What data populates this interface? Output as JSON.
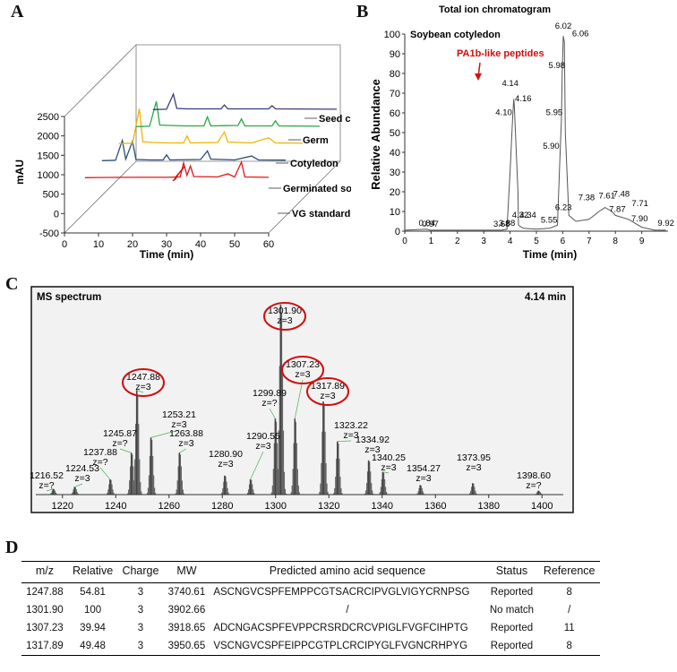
{
  "panels": {
    "a": "A",
    "b": "B",
    "c": "C",
    "d": "D"
  },
  "colors": {
    "seed_coat": "#3b3b7a",
    "germ": "#27a844",
    "cotyledon": "#f0b400",
    "germinated": "#2a4c7a",
    "vg_standard": "#e01818",
    "annotation_red": "#d01010",
    "tic_line": "#555555"
  },
  "chart_data": [
    {
      "id": "panel-a",
      "type": "line",
      "title": "",
      "xlabel": "Time (min)",
      "ylabel": "mAU",
      "x_ticks": [
        "0",
        "10",
        "20",
        "30",
        "40",
        "50",
        "60"
      ],
      "y_ticks": [
        "-500",
        "0",
        "500",
        "1000",
        "1500",
        "2000",
        "2500"
      ],
      "xlim": [
        0,
        60
      ],
      "ylim": [
        -500,
        2500
      ],
      "series": [
        {
          "name": "VG standard",
          "color": "#e01818",
          "points": [
            [
              6,
              0
            ],
            [
              10,
              5
            ],
            [
              20,
              10
            ],
            [
              30,
              10
            ],
            [
              34,
              20
            ],
            [
              35,
              380
            ],
            [
              36,
              60
            ],
            [
              37,
              300
            ],
            [
              38,
              30
            ],
            [
              45,
              20
            ],
            [
              48,
              100
            ],
            [
              50,
              20
            ],
            [
              52,
              400
            ],
            [
              53,
              20
            ],
            [
              60,
              10
            ]
          ]
        },
        {
          "name": "Germinated soybean",
          "color": "#2a4c7a",
          "points": [
            [
              6,
              0
            ],
            [
              10,
              10
            ],
            [
              12,
              520
            ],
            [
              13,
              40
            ],
            [
              15,
              500
            ],
            [
              16,
              30
            ],
            [
              20,
              20
            ],
            [
              24,
              20
            ],
            [
              25,
              150
            ],
            [
              26,
              20
            ],
            [
              35,
              30
            ],
            [
              37,
              250
            ],
            [
              38,
              40
            ],
            [
              45,
              20
            ],
            [
              50,
              120
            ],
            [
              52,
              20
            ],
            [
              60,
              15
            ]
          ]
        },
        {
          "name": "Cotyledon",
          "color": "#f0b400",
          "points": [
            [
              6,
              0
            ],
            [
              10,
              10
            ],
            [
              12,
              900
            ],
            [
              13,
              50
            ],
            [
              16,
              30
            ],
            [
              20,
              20
            ],
            [
              25,
              20
            ],
            [
              26,
              200
            ],
            [
              27,
              20
            ],
            [
              35,
              30
            ],
            [
              37,
              300
            ],
            [
              38,
              40
            ],
            [
              45,
              20
            ],
            [
              50,
              150
            ],
            [
              52,
              20
            ],
            [
              60,
              10
            ]
          ]
        },
        {
          "name": "Germ",
          "color": "#27a844",
          "points": [
            [
              6,
              0
            ],
            [
              10,
              10
            ],
            [
              12,
              650
            ],
            [
              13,
              40
            ],
            [
              16,
              30
            ],
            [
              20,
              20
            ],
            [
              26,
              20
            ],
            [
              27,
              250
            ],
            [
              28,
              20
            ],
            [
              36,
              30
            ],
            [
              37,
              200
            ],
            [
              38,
              20
            ],
            [
              46,
              20
            ],
            [
              47,
              150
            ],
            [
              48,
              20
            ],
            [
              60,
              10
            ]
          ]
        },
        {
          "name": "Seed coat",
          "color": "#3b3b7a",
          "points": [
            [
              6,
              0
            ],
            [
              10,
              10
            ],
            [
              12,
              400
            ],
            [
              13,
              30
            ],
            [
              16,
              20
            ],
            [
              20,
              20
            ],
            [
              26,
              20
            ],
            [
              27,
              120
            ],
            [
              28,
              20
            ],
            [
              40,
              20
            ],
            [
              41,
              100
            ],
            [
              42,
              20
            ],
            [
              60,
              10
            ]
          ]
        }
      ],
      "legend_labels": [
        "Seed coat",
        "Germ",
        "Cotyledon",
        "Germinated soybean",
        "VG standard"
      ]
    },
    {
      "id": "panel-b",
      "type": "line",
      "title": "Total ion chromatogram",
      "subtitle": "Soybean cotyledon",
      "xlabel": "Time (min)",
      "ylabel": "Relative Abundance",
      "xlim": [
        0,
        10
      ],
      "ylim": [
        0,
        100
      ],
      "x_ticks": [
        "0",
        "1",
        "2",
        "3",
        "4",
        "5",
        "6",
        "7",
        "8",
        "9"
      ],
      "y_ticks": [
        "0",
        "10",
        "20",
        "30",
        "40",
        "50",
        "60",
        "70",
        "80",
        "90",
        "100"
      ],
      "annotation": "PA1b-like peptides",
      "points": [
        [
          0,
          0.5
        ],
        [
          0.84,
          1
        ],
        [
          0.97,
          0.5
        ],
        [
          2,
          0.5
        ],
        [
          3,
          0.5
        ],
        [
          3.68,
          0.5
        ],
        [
          3.88,
          1
        ],
        [
          4.0,
          30
        ],
        [
          4.1,
          58
        ],
        [
          4.14,
          67
        ],
        [
          4.16,
          64
        ],
        [
          4.3,
          20
        ],
        [
          4.32,
          3
        ],
        [
          4.5,
          1.5
        ],
        [
          5,
          1
        ],
        [
          5.5,
          1.5
        ],
        [
          5.8,
          3
        ],
        [
          5.9,
          40
        ],
        [
          5.95,
          56
        ],
        [
          5.98,
          80
        ],
        [
          6.02,
          99
        ],
        [
          6.06,
          96
        ],
        [
          6.1,
          50
        ],
        [
          6.23,
          8
        ],
        [
          6.5,
          5
        ],
        [
          7,
          6
        ],
        [
          7.38,
          10
        ],
        [
          7.61,
          12
        ],
        [
          7.87,
          10
        ],
        [
          8,
          8
        ],
        [
          8.5,
          6
        ],
        [
          9,
          2
        ],
        [
          9.5,
          0.5
        ],
        [
          9.92,
          0.5
        ]
      ],
      "peak_labels": [
        {
          "t": 0.84,
          "y": 1,
          "label": "0.84"
        },
        {
          "t": 0.97,
          "y": 0.5,
          "label": "0.97"
        },
        {
          "t": 3.68,
          "y": 0.5,
          "label": "3.68"
        },
        {
          "t": 3.88,
          "y": 1,
          "label": "3.88"
        },
        {
          "t": 4.1,
          "y": 58,
          "label": "4.10"
        },
        {
          "t": 4.14,
          "y": 71,
          "label": "4.14"
        },
        {
          "t": 4.16,
          "y": 66,
          "label": "4.16"
        },
        {
          "t": 4.32,
          "y": 5,
          "label": "4.32"
        },
        {
          "t": 4.34,
          "y": 4,
          "label": "4.34"
        },
        {
          "t": 5.55,
          "y": 1.5,
          "label": "5.55"
        },
        {
          "t": 5.9,
          "y": 40,
          "label": "5.90"
        },
        {
          "t": 5.95,
          "y": 57,
          "label": "5.95"
        },
        {
          "t": 5.98,
          "y": 81,
          "label": "5.98"
        },
        {
          "t": 6.02,
          "y": 100,
          "label": "6.02"
        },
        {
          "t": 6.06,
          "y": 98,
          "label": "6.06"
        },
        {
          "t": 6.23,
          "y": 8,
          "label": "6.23"
        },
        {
          "t": 7.38,
          "y": 12,
          "label": "7.38"
        },
        {
          "t": 7.61,
          "y": 13,
          "label": "7.61"
        },
        {
          "t": 7.48,
          "y": 12,
          "label": "7.48"
        },
        {
          "t": 7.71,
          "y": 11,
          "label": "7.71"
        },
        {
          "t": 7.87,
          "y": 8,
          "label": "7.87"
        },
        {
          "t": 7.9,
          "y": 6,
          "label": "7.90"
        },
        {
          "t": 9.92,
          "y": 1,
          "label": "9.92"
        }
      ]
    },
    {
      "id": "panel-c",
      "type": "bar",
      "title": "MS spectrum",
      "retention": "4.14 min",
      "xlim": [
        1210,
        1410
      ],
      "x_ticks": [
        "1220",
        "1240",
        "1260",
        "1280",
        "1300",
        "1320",
        "1340",
        "1360",
        "1380",
        "1400"
      ],
      "peaks": [
        {
          "mz": 1216.52,
          "intensity": 3,
          "label": "1216.52",
          "charge": "z=?",
          "circled": false
        },
        {
          "mz": 1224.53,
          "intensity": 4,
          "label": "1224.53",
          "charge": "z=3",
          "circled": false
        },
        {
          "mz": 1237.88,
          "intensity": 8,
          "label": "1237.88",
          "charge": "z=?",
          "circled": false
        },
        {
          "mz": 1245.87,
          "intensity": 22,
          "label": "1245.87",
          "charge": "z=?",
          "circled": false
        },
        {
          "mz": 1247.88,
          "intensity": 55,
          "label": "1247.88",
          "charge": "z=3",
          "circled": true
        },
        {
          "mz": 1253.21,
          "intensity": 30,
          "label": "1253.21",
          "charge": "z=3",
          "circled": false
        },
        {
          "mz": 1263.88,
          "intensity": 22,
          "label": "1263.88",
          "charge": "z=3",
          "circled": false
        },
        {
          "mz": 1280.9,
          "intensity": 10,
          "label": "1280.90",
          "charge": "z=3",
          "circled": false
        },
        {
          "mz": 1290.55,
          "intensity": 8,
          "label": "1290.55",
          "charge": "z=3",
          "circled": false
        },
        {
          "mz": 1299.89,
          "intensity": 40,
          "label": "1299.89",
          "charge": "z=?",
          "circled": false
        },
        {
          "mz": 1301.9,
          "intensity": 100,
          "label": "1301.90",
          "charge": "z=3",
          "circled": true
        },
        {
          "mz": 1307.23,
          "intensity": 40,
          "label": "1307.23",
          "charge": "z=3",
          "circled": true
        },
        {
          "mz": 1317.89,
          "intensity": 49,
          "label": "1317.89",
          "charge": "z=3",
          "circled": true
        },
        {
          "mz": 1323.22,
          "intensity": 28,
          "label": "1323.22",
          "charge": "z=3",
          "circled": false
        },
        {
          "mz": 1334.92,
          "intensity": 18,
          "label": "1334.92",
          "charge": "z=3",
          "circled": false
        },
        {
          "mz": 1340.25,
          "intensity": 12,
          "label": "1340.25",
          "charge": "z=3",
          "circled": false
        },
        {
          "mz": 1354.27,
          "intensity": 5,
          "label": "1354.27",
          "charge": "z=3",
          "circled": false
        },
        {
          "mz": 1373.95,
          "intensity": 6,
          "label": "1373.95",
          "charge": "z=3",
          "circled": false
        },
        {
          "mz": 1398.6,
          "intensity": 2,
          "label": "1398.60",
          "charge": "z=?",
          "circled": false
        }
      ]
    },
    {
      "id": "panel-d",
      "type": "table",
      "columns": [
        "m/z",
        "Relative",
        "Charge",
        "MW",
        "Predicted amino acid sequence",
        "Status",
        "Reference"
      ],
      "rows": [
        [
          "1247.88",
          "54.81",
          "3",
          "3740.61",
          "ASCNGVCSPFEMPPCGTSACRCIPVGLVIGYCRNPSG",
          "Reported",
          "8"
        ],
        [
          "1301.90",
          "100",
          "3",
          "3902.66",
          "/",
          "No match",
          "/"
        ],
        [
          "1307.23",
          "39.94",
          "3",
          "3918.65",
          "ADCNGACSPFEVPPCRSRDCRCVPIGLFVGFCIHPTG",
          "Reported",
          "11"
        ],
        [
          "1317.89",
          "49.48",
          "3",
          "3950.65",
          "VSCNGVCSPFEIPPCGTPLCRCIPYGLFVGNCRHPYG",
          "Reported",
          "8"
        ]
      ]
    }
  ]
}
